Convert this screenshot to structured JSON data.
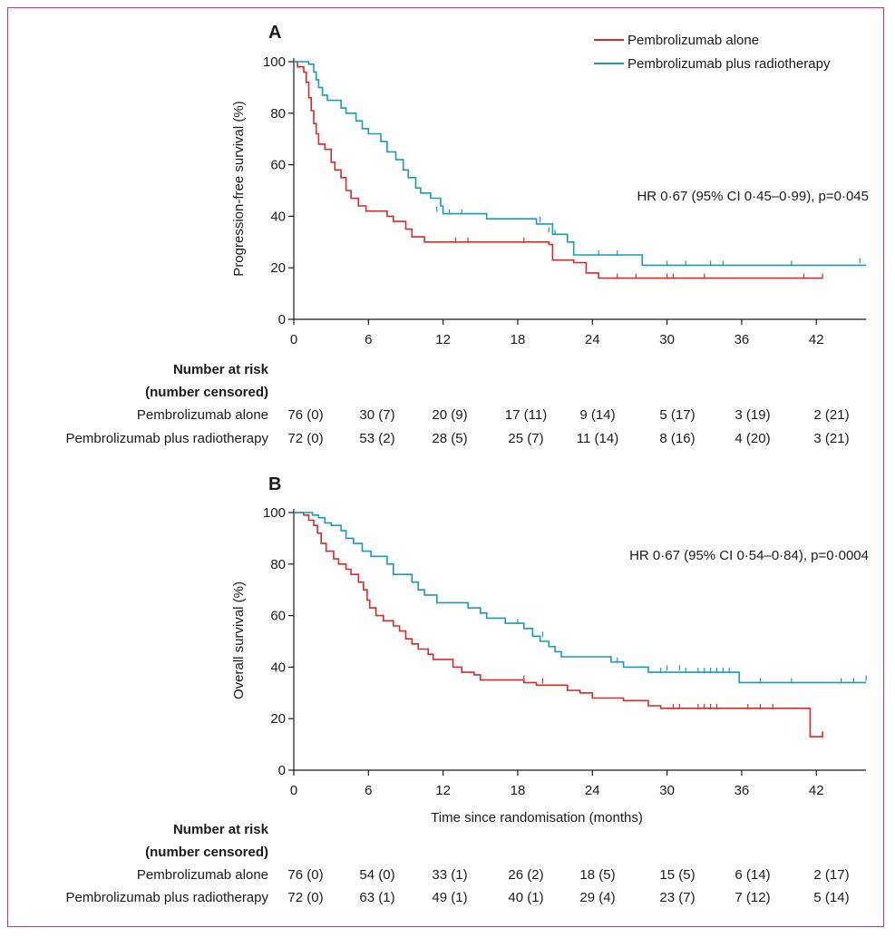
{
  "colors": {
    "frame": "#c0338a",
    "alone": "#d92a2a",
    "radio": "#1a9bb5",
    "axis": "#1a1a1a"
  },
  "legend": {
    "alone": "Pembrolizumab alone",
    "radio": "Pembrolizumab plus radiotherapy"
  },
  "risk": {
    "heading1": "Number at risk",
    "heading2": "(number censored)",
    "alone_label": "Pembrolizumab alone",
    "radio_label": "Pembrolizumab plus radiotherapy"
  },
  "xlabel": "Time since randomisation (months)",
  "chart_data": [
    {
      "panel": "A",
      "type": "line",
      "ylabel": "Progression-free survival (%)",
      "xlabel": "",
      "xlim": [
        0,
        46
      ],
      "ylim": [
        0,
        100
      ],
      "xticks": [
        0,
        6,
        12,
        18,
        24,
        30,
        36,
        42
      ],
      "yticks": [
        0,
        20,
        40,
        60,
        80,
        100
      ],
      "annotation": "HR 0·67 (95% CI 0·45–0·99), p=0·045",
      "series": [
        {
          "name": "Pembrolizumab alone",
          "key": "alone",
          "points": [
            [
              0,
              100
            ],
            [
              0.3,
              98
            ],
            [
              0.8,
              96
            ],
            [
              1.0,
              92
            ],
            [
              1.2,
              86
            ],
            [
              1.4,
              81
            ],
            [
              1.6,
              76
            ],
            [
              1.8,
              72
            ],
            [
              2.0,
              68
            ],
            [
              2.5,
              66
            ],
            [
              3.0,
              61
            ],
            [
              3.3,
              58
            ],
            [
              3.8,
              55
            ],
            [
              4.2,
              50
            ],
            [
              4.6,
              47
            ],
            [
              5.2,
              44
            ],
            [
              5.8,
              42
            ],
            [
              7.5,
              40
            ],
            [
              8.0,
              38
            ],
            [
              9.0,
              35
            ],
            [
              9.5,
              32
            ],
            [
              10.5,
              30
            ],
            [
              20.5,
              29
            ],
            [
              20.8,
              23
            ],
            [
              22.5,
              22
            ],
            [
              23.5,
              18
            ],
            [
              24.5,
              16
            ],
            [
              42.5,
              16
            ]
          ],
          "censor": [
            [
              13,
              30
            ],
            [
              14,
              30
            ],
            [
              18.5,
              30
            ],
            [
              26,
              16
            ],
            [
              27.5,
              16
            ],
            [
              30,
              16
            ],
            [
              30.5,
              16
            ],
            [
              33,
              16
            ],
            [
              41,
              16
            ],
            [
              42.5,
              16
            ]
          ]
        },
        {
          "name": "Pembrolizumab plus radiotherapy",
          "key": "radio",
          "points": [
            [
              0,
              100
            ],
            [
              1.2,
              99
            ],
            [
              1.6,
              96
            ],
            [
              1.8,
              93
            ],
            [
              2.0,
              90
            ],
            [
              2.3,
              87
            ],
            [
              2.7,
              85
            ],
            [
              3.8,
              82
            ],
            [
              4.2,
              80
            ],
            [
              5.0,
              77
            ],
            [
              5.5,
              74
            ],
            [
              6.0,
              72
            ],
            [
              7.0,
              69
            ],
            [
              7.5,
              65
            ],
            [
              8.2,
              62
            ],
            [
              8.8,
              58
            ],
            [
              9.2,
              55
            ],
            [
              9.8,
              51
            ],
            [
              10.2,
              49
            ],
            [
              11.0,
              47
            ],
            [
              11.8,
              44
            ],
            [
              12.0,
              41
            ],
            [
              15.5,
              39
            ],
            [
              19.5,
              37
            ],
            [
              20.8,
              33
            ],
            [
              22.0,
              30
            ],
            [
              22.5,
              25
            ],
            [
              28.0,
              21
            ],
            [
              46,
              21
            ]
          ],
          "censor": [
            [
              11.5,
              42
            ],
            [
              12.5,
              41
            ],
            [
              13.5,
              41
            ],
            [
              19.8,
              38
            ],
            [
              20.5,
              34
            ],
            [
              21,
              33
            ],
            [
              24.5,
              25
            ],
            [
              26,
              25
            ],
            [
              30,
              21
            ],
            [
              31.5,
              21
            ],
            [
              33.5,
              21
            ],
            [
              34.5,
              21
            ],
            [
              40,
              21
            ],
            [
              45.5,
              22
            ]
          ]
        }
      ],
      "risk_table": {
        "alone": [
          "76 (0)",
          "30 (7)",
          "20 (9)",
          "17 (11)",
          "9 (14)",
          "5 (17)",
          "3 (19)",
          "2 (21)"
        ],
        "radio": [
          "72 (0)",
          "53 (2)",
          "28 (5)",
          "25 (7)",
          "11 (14)",
          "8 (16)",
          "4 (20)",
          "3 (21)"
        ]
      }
    },
    {
      "panel": "B",
      "type": "line",
      "ylabel": "Overall survival (%)",
      "xlabel": "Time since randomisation (months)",
      "xlim": [
        0,
        46
      ],
      "ylim": [
        0,
        100
      ],
      "xticks": [
        0,
        6,
        12,
        18,
        24,
        30,
        36,
        42
      ],
      "yticks": [
        0,
        20,
        40,
        60,
        80,
        100
      ],
      "annotation": "HR 0·67 (95% CI 0·54–0·84), p=0·0004",
      "series": [
        {
          "name": "Pembrolizumab alone",
          "key": "alone",
          "points": [
            [
              0,
              100
            ],
            [
              0.8,
              99
            ],
            [
              1.2,
              97
            ],
            [
              1.6,
              95
            ],
            [
              1.9,
              92
            ],
            [
              2.2,
              88
            ],
            [
              2.6,
              85
            ],
            [
              3.2,
              82
            ],
            [
              3.6,
              80
            ],
            [
              4.2,
              78
            ],
            [
              4.6,
              76
            ],
            [
              5.2,
              73
            ],
            [
              5.6,
              70
            ],
            [
              5.9,
              66
            ],
            [
              6.1,
              63
            ],
            [
              6.6,
              60
            ],
            [
              7.2,
              58
            ],
            [
              8.0,
              56
            ],
            [
              8.5,
              54
            ],
            [
              9.0,
              51
            ],
            [
              9.5,
              49
            ],
            [
              10.0,
              47
            ],
            [
              10.8,
              45
            ],
            [
              11.2,
              43
            ],
            [
              12.8,
              40
            ],
            [
              13.5,
              38
            ],
            [
              14.5,
              37
            ],
            [
              15.0,
              35
            ],
            [
              18.5,
              34
            ],
            [
              19.5,
              33
            ],
            [
              22.0,
              31
            ],
            [
              23.0,
              30
            ],
            [
              24.0,
              28
            ],
            [
              26.5,
              27
            ],
            [
              28.5,
              25
            ],
            [
              29.5,
              24
            ],
            [
              41.0,
              24
            ],
            [
              41.5,
              13
            ],
            [
              42.0,
              13
            ],
            [
              42.5,
              15
            ]
          ],
          "censor": [
            [
              18.5,
              35
            ],
            [
              20,
              34
            ],
            [
              30.5,
              24
            ],
            [
              31,
              24
            ],
            [
              32.5,
              24
            ],
            [
              33,
              24
            ],
            [
              33.5,
              24
            ],
            [
              34,
              24
            ],
            [
              36.5,
              24
            ],
            [
              37.5,
              24
            ],
            [
              38.5,
              24
            ]
          ]
        },
        {
          "name": "Pembrolizumab plus radiotherapy",
          "key": "radio",
          "points": [
            [
              0,
              100
            ],
            [
              1.5,
              99
            ],
            [
              2.0,
              98
            ],
            [
              2.5,
              96
            ],
            [
              3.0,
              95
            ],
            [
              3.8,
              93
            ],
            [
              4.2,
              90
            ],
            [
              4.8,
              88
            ],
            [
              5.5,
              85
            ],
            [
              6.2,
              83
            ],
            [
              7.5,
              80
            ],
            [
              8.0,
              76
            ],
            [
              9.5,
              73
            ],
            [
              10.0,
              70
            ],
            [
              10.5,
              68
            ],
            [
              11.5,
              65
            ],
            [
              14.0,
              63
            ],
            [
              15.0,
              61
            ],
            [
              15.5,
              59
            ],
            [
              17.0,
              57
            ],
            [
              18.5,
              55
            ],
            [
              19.2,
              52
            ],
            [
              19.8,
              50
            ],
            [
              20.5,
              48
            ],
            [
              21.0,
              46
            ],
            [
              21.5,
              44
            ],
            [
              25.5,
              42
            ],
            [
              26.5,
              40
            ],
            [
              28.5,
              38
            ],
            [
              35.5,
              38
            ],
            [
              35.8,
              34
            ],
            [
              46,
              34
            ]
          ],
          "censor": [
            [
              18,
              57
            ],
            [
              20,
              52
            ],
            [
              26,
              42
            ],
            [
              29.5,
              38
            ],
            [
              30,
              39
            ],
            [
              31,
              39
            ],
            [
              31.5,
              38
            ],
            [
              32.5,
              38
            ],
            [
              33,
              38
            ],
            [
              33.5,
              38
            ],
            [
              34,
              38
            ],
            [
              34.5,
              38
            ],
            [
              35,
              38
            ],
            [
              37.5,
              34
            ],
            [
              40,
              34
            ],
            [
              44,
              34
            ],
            [
              45,
              34
            ],
            [
              46,
              35
            ]
          ]
        }
      ],
      "risk_table": {
        "alone": [
          "76 (0)",
          "54 (0)",
          "33 (1)",
          "26 (2)",
          "18 (5)",
          "15 (5)",
          "6 (14)",
          "2 (17)"
        ],
        "radio": [
          "72 (0)",
          "63 (1)",
          "49 (1)",
          "40 (1)",
          "29 (4)",
          "23 (7)",
          "7 (12)",
          "5 (14)"
        ]
      }
    }
  ]
}
